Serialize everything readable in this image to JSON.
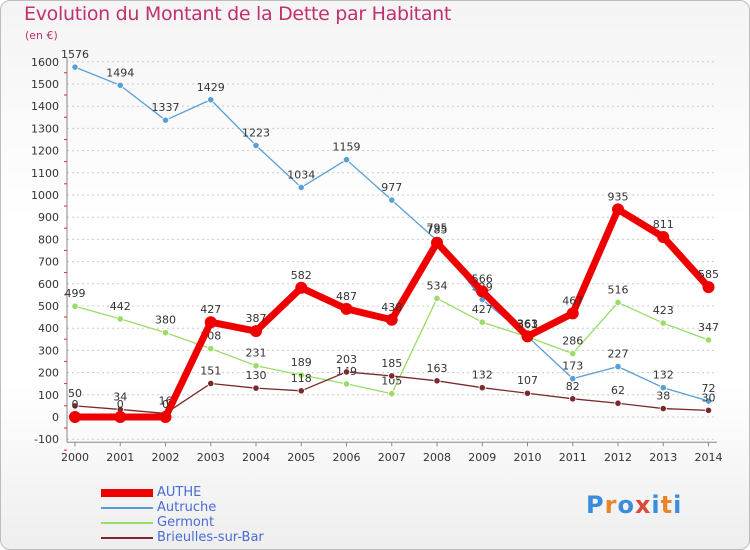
{
  "header": {
    "title": "Evolution du Montant de la Dette par Habitant",
    "unit": "(en €)"
  },
  "logo": {
    "text": "Proxiti",
    "colors": [
      "#3a8ddb",
      "#e8852b",
      "#3a8ddb",
      "#d84a3a",
      "#3a8ddb",
      "#e8852b",
      "#3a8ddb"
    ]
  },
  "chart_data": {
    "type": "line",
    "title": "Evolution du Montant de la Dette par Habitant",
    "ylabel": "(en €)",
    "xlabel": "",
    "ylim": [
      -100,
      1600
    ],
    "yticks": [
      -100,
      0,
      100,
      200,
      300,
      400,
      500,
      600,
      700,
      800,
      900,
      1000,
      1100,
      1200,
      1300,
      1400,
      1500,
      1600
    ],
    "grid": "horizontal dotted",
    "legend_position": "bottom-left",
    "categories": [
      "2000",
      "2001",
      "2002",
      "2003",
      "2004",
      "2005",
      "2006",
      "2007",
      "2008",
      "2009",
      "2010",
      "2011",
      "2012",
      "2013",
      "2014"
    ],
    "series": [
      {
        "name": "Autruche",
        "color": "#5a9fd4",
        "width": 1.3,
        "values": [
          1576,
          1494,
          1337,
          1429,
          1223,
          1034,
          1159,
          977,
          795,
          529,
          363,
          173,
          227,
          132,
          72
        ]
      },
      {
        "name": "Germont",
        "color": "#99dd66",
        "width": 1.3,
        "values": [
          499,
          442,
          380,
          308,
          231,
          189,
          149,
          105,
          534,
          427,
          361,
          286,
          516,
          423,
          347
        ]
      },
      {
        "name": "Brieulles-sur-Bar",
        "color": "#7a2a2a",
        "width": 1.3,
        "values": [
          50,
          34,
          16,
          151,
          130,
          118,
          203,
          185,
          163,
          132,
          107,
          82,
          62,
          38,
          30
        ]
      },
      {
        "name": "AUTHE",
        "color": "#ee0000",
        "width": 7,
        "values": [
          0,
          0,
          0,
          427,
          387,
          582,
          487,
          438,
          785,
          566,
          363,
          467,
          935,
          811,
          585
        ]
      }
    ]
  }
}
